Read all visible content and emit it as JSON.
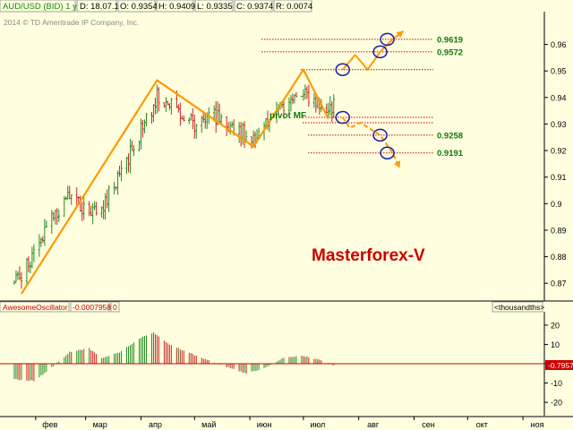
{
  "header": {
    "symbol": "AUD/USD (BID) 1 y D",
    "date": "D: 18.07.14",
    "open": "O: 0.9354",
    "high": "H: 0.9409",
    "low": "L: 0.9335",
    "close": "C: 0.9374",
    "range": "R: 0.0074"
  },
  "watermark": "2014 © TD Ameritrade IP Company, Inc.",
  "brand": "Masterforex-V",
  "pivot_label": "pivot MF",
  "oscillator": {
    "name": "AwesomeOscillator",
    "value": "-0.0007958",
    "extra": "0",
    "units": "<thousandths>",
    "last_tag": "-0.7957"
  },
  "colors": {
    "background": "#ffffe0",
    "candle_up": "#228b22",
    "candle_down": "#cc2222",
    "zigzag": "#ff9900",
    "level_line": "#cc0000",
    "level_text": "#117711",
    "circle": "#1a1aa0",
    "brand": "#cc0000",
    "header_symbol": "#118811",
    "osc_name": "#cc0000"
  },
  "chart_data": [
    {
      "type": "candlestick",
      "title": "AUD/USD (BID) 1 y D",
      "x_ticks": [
        "фев",
        "мар",
        "апр",
        "май",
        "июн",
        "июл",
        "авг",
        "сен",
        "окт",
        "ноя"
      ],
      "y_ticks": [
        "0.87",
        "0.88",
        "0.89",
        "0.9",
        "0.91",
        "0.92",
        "0.93",
        "0.94",
        "0.95",
        "0.96"
      ],
      "ylim": [
        0.864,
        0.972
      ],
      "grid": false,
      "levels": [
        {
          "label": "0.9619",
          "value": 0.9619
        },
        {
          "label": "0.9572",
          "value": 0.9572
        },
        {
          "label": "",
          "value": 0.9505
        },
        {
          "label": "",
          "value": 0.9325
        },
        {
          "label": "",
          "value": 0.9305
        },
        {
          "label": "0.9258",
          "value": 0.9258
        },
        {
          "label": "0.9191",
          "value": 0.9191
        }
      ],
      "zigzag": [
        {
          "x": "2014-01-24",
          "y": 0.866
        },
        {
          "x": "2014-04-10",
          "y": 0.9465
        },
        {
          "x": "2014-06-03",
          "y": 0.9215
        },
        {
          "x": "2014-07-01",
          "y": 0.9505
        },
        {
          "x": "2014-07-15",
          "y": 0.932
        }
      ],
      "projection_up": [
        {
          "x": "2014-07-23",
          "y": 0.9505
        },
        {
          "x": "2014-07-30",
          "y": 0.956
        },
        {
          "x": "2014-08-06",
          "y": 0.9505
        },
        {
          "x": "2014-08-13",
          "y": 0.9572
        },
        {
          "x": "2014-08-20",
          "y": 0.9619
        },
        {
          "x": "2014-08-26",
          "y": 0.965
        }
      ],
      "projection_down": [
        {
          "x": "2014-07-23",
          "y": 0.9325
        },
        {
          "x": "2014-07-27",
          "y": 0.9285
        },
        {
          "x": "2014-08-02",
          "y": 0.9305
        },
        {
          "x": "2014-08-13",
          "y": 0.9258
        },
        {
          "x": "2014-08-20",
          "y": 0.9191
        },
        {
          "x": "2014-08-24",
          "y": 0.9135
        }
      ],
      "circles": [
        {
          "x": "2014-07-23",
          "y": 0.9505
        },
        {
          "x": "2014-08-13",
          "y": 0.9572
        },
        {
          "x": "2014-08-17",
          "y": 0.9619
        },
        {
          "x": "2014-07-23",
          "y": 0.9325
        },
        {
          "x": "2014-08-13",
          "y": 0.9258
        },
        {
          "x": "2014-08-17",
          "y": 0.9191
        }
      ],
      "anchors": [
        {
          "x": "2014-01-20",
          "y": 0.87
        },
        {
          "x": "2014-01-31",
          "y": 0.88
        },
        {
          "x": "2014-02-10",
          "y": 0.895
        },
        {
          "x": "2014-02-20",
          "y": 0.903
        },
        {
          "x": "2014-03-03",
          "y": 0.895
        },
        {
          "x": "2014-03-10",
          "y": 0.899
        },
        {
          "x": "2014-03-20",
          "y": 0.911
        },
        {
          "x": "2014-03-31",
          "y": 0.926
        },
        {
          "x": "2014-04-10",
          "y": 0.94
        },
        {
          "x": "2014-04-20",
          "y": 0.936
        },
        {
          "x": "2014-05-01",
          "y": 0.93
        },
        {
          "x": "2014-05-10",
          "y": 0.934
        },
        {
          "x": "2014-05-20",
          "y": 0.93
        },
        {
          "x": "2014-06-03",
          "y": 0.925
        },
        {
          "x": "2014-06-12",
          "y": 0.932
        },
        {
          "x": "2014-06-20",
          "y": 0.938
        },
        {
          "x": "2014-07-01",
          "y": 0.943
        },
        {
          "x": "2014-07-10",
          "y": 0.937
        },
        {
          "x": "2014-07-18",
          "y": 0.937
        }
      ]
    },
    {
      "type": "bar",
      "title": "AwesomeOscillator",
      "y_ticks": [
        "20",
        "10",
        "0",
        "-10",
        "-20"
      ],
      "ylim": [
        -26,
        26
      ],
      "anchors": [
        {
          "x": "2014-01-20",
          "y": -8
        },
        {
          "x": "2014-01-31",
          "y": -9
        },
        {
          "x": "2014-02-10",
          "y": -2
        },
        {
          "x": "2014-02-20",
          "y": 6
        },
        {
          "x": "2014-03-03",
          "y": 8
        },
        {
          "x": "2014-03-10",
          "y": 3
        },
        {
          "x": "2014-03-20",
          "y": 6
        },
        {
          "x": "2014-03-31",
          "y": 13
        },
        {
          "x": "2014-04-08",
          "y": 16
        },
        {
          "x": "2014-04-17",
          "y": 10
        },
        {
          "x": "2014-04-27",
          "y": 6
        },
        {
          "x": "2014-05-08",
          "y": 2
        },
        {
          "x": "2014-05-20",
          "y": -2
        },
        {
          "x": "2014-05-30",
          "y": -5
        },
        {
          "x": "2014-06-10",
          "y": -2
        },
        {
          "x": "2014-06-20",
          "y": 3
        },
        {
          "x": "2014-07-01",
          "y": 4
        },
        {
          "x": "2014-07-10",
          "y": 2
        },
        {
          "x": "2014-07-18",
          "y": -0.8
        }
      ]
    }
  ]
}
